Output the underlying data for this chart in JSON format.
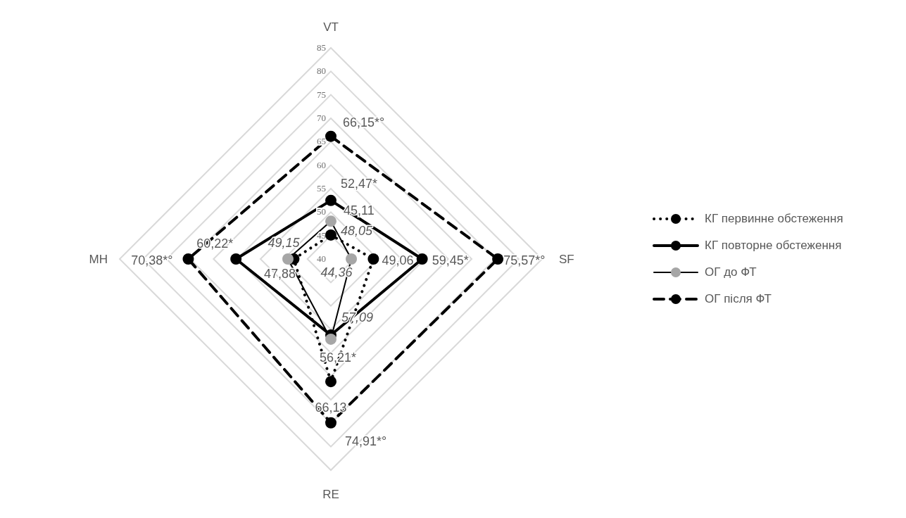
{
  "chart_data": {
    "type": "radar",
    "categories": [
      "VT",
      "SF",
      "RE",
      "MH"
    ],
    "ylim": [
      40,
      85
    ],
    "yticks": [
      40,
      45,
      50,
      55,
      60,
      65,
      70,
      75,
      80,
      85
    ],
    "grid": true,
    "legend": "right",
    "marker": "circle",
    "series": [
      {
        "name": "КГ первинне обстеження",
        "color": "#000000",
        "line_style": "dotted",
        "values": [
          45.11,
          49.06,
          66.13,
          47.88
        ],
        "value_labels": [
          "45,11",
          "49,06",
          "66,13",
          "47,88"
        ]
      },
      {
        "name": "КГ повторне обстеження",
        "color": "#000000",
        "line_style": "solid",
        "values": [
          52.47,
          59.45,
          56.21,
          60.22
        ],
        "value_labels": [
          "52,47*",
          "59,45*",
          "56,21*",
          "60,22*"
        ]
      },
      {
        "name": "ОГ до ФТ",
        "color": "#000000",
        "colors": [
          "#a6a6a6",
          "#a6a6a6",
          "#a6a6a6",
          "#a6a6a6"
        ],
        "line_style": "solid",
        "values": [
          48.05,
          44.36,
          57.09,
          49.15
        ],
        "value_labels": [
          "48,05",
          "44,36",
          "57,09",
          "49,15"
        ]
      },
      {
        "name": "ОГ після ФТ",
        "color": "#000000",
        "line_style": "dashed",
        "values": [
          66.15,
          75.57,
          74.91,
          70.38
        ],
        "value_labels": [
          "66,15*°",
          "75,57*°",
          "74,91*°",
          "70,38*°"
        ]
      }
    ]
  }
}
